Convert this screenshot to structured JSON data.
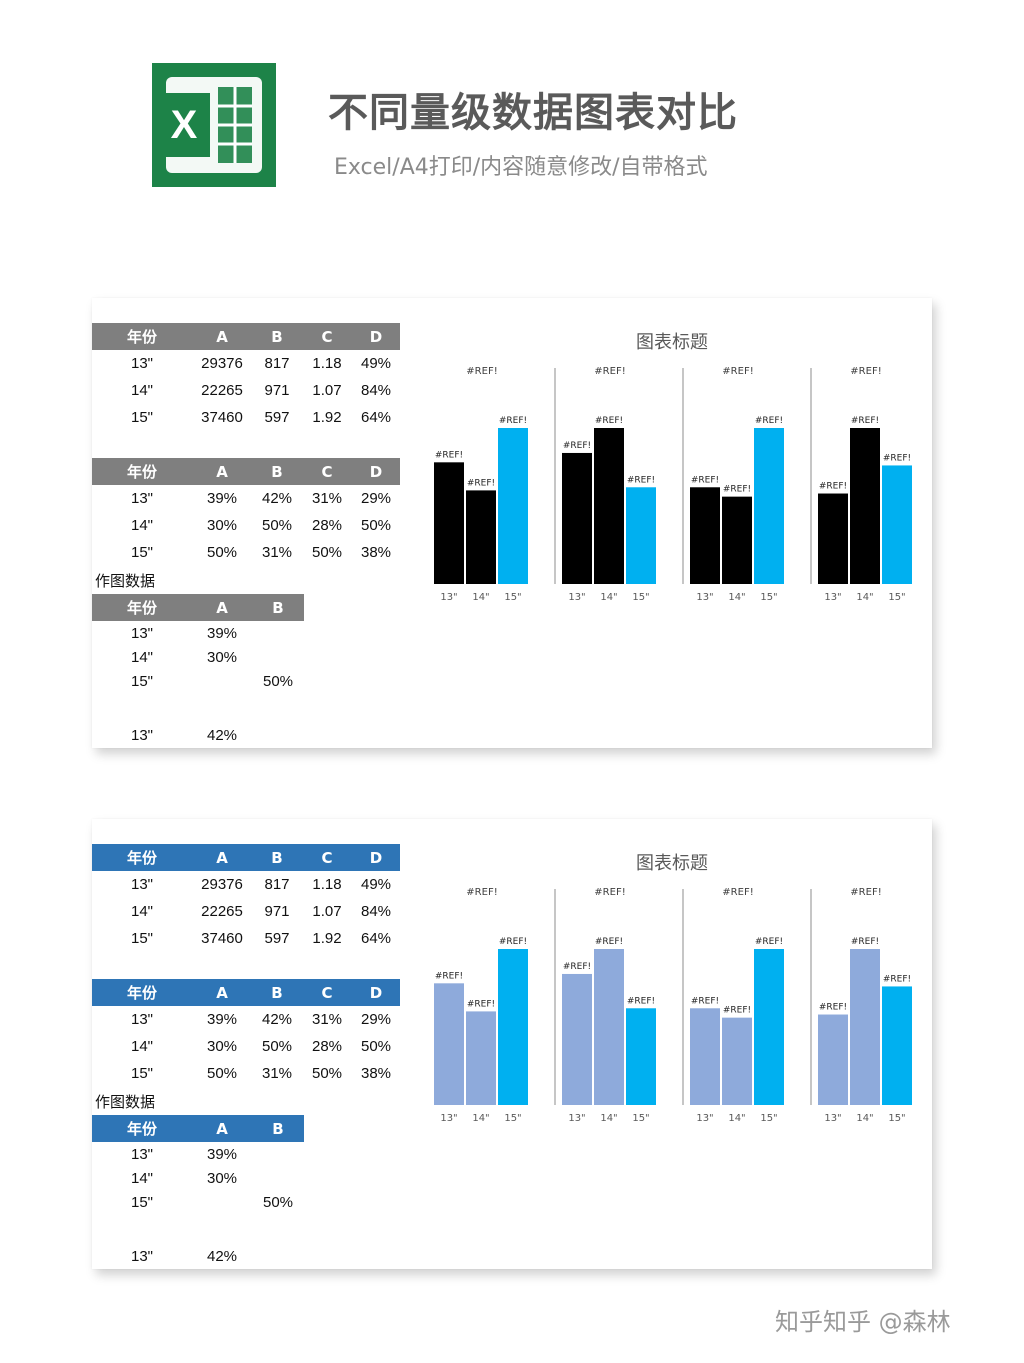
{
  "header": {
    "title": "不同量级数据图表对比",
    "subtitle": "Excel/A4打印/内容随意修改/自带格式",
    "logo_letter": "X",
    "logo_color": "#1d8348"
  },
  "panels": [
    {
      "theme": "gray",
      "colors": {
        "header_bg": "#7f7f7f",
        "bar_primary": "#000000",
        "bar_highlight": "#00b0f0"
      },
      "raw_table": {
        "headers": [
          "年份",
          "A",
          "B",
          "C",
          "D"
        ],
        "rows": [
          [
            "13\"",
            "29376",
            "817",
            "1.18",
            "49%"
          ],
          [
            "14\"",
            "22265",
            "971",
            "1.07",
            "84%"
          ],
          [
            "15\"",
            "37460",
            "597",
            "1.92",
            "64%"
          ]
        ]
      },
      "percent_table": {
        "headers": [
          "年份",
          "A",
          "B",
          "C",
          "D"
        ],
        "rows": [
          [
            "13\"",
            "39%",
            "42%",
            "31%",
            "29%"
          ],
          [
            "14\"",
            "30%",
            "50%",
            "28%",
            "50%"
          ],
          [
            "15\"",
            "50%",
            "31%",
            "50%",
            "38%"
          ]
        ]
      },
      "plot_label": "作图数据",
      "plot_table": {
        "headers": [
          "年份",
          "A",
          "B"
        ],
        "rows": [
          [
            "13\"",
            "39%",
            ""
          ],
          [
            "14\"",
            "30%",
            ""
          ],
          [
            "15\"",
            "",
            "50%"
          ],
          [
            "",
            "",
            ""
          ],
          [
            "13\"",
            "42%",
            ""
          ]
        ]
      }
    },
    {
      "theme": "blue",
      "colors": {
        "header_bg": "#2e75b6",
        "bar_primary": "#8eaadb",
        "bar_highlight": "#00b0f0"
      },
      "raw_table": {
        "headers": [
          "年份",
          "A",
          "B",
          "C",
          "D"
        ],
        "rows": [
          [
            "13\"",
            "29376",
            "817",
            "1.18",
            "49%"
          ],
          [
            "14\"",
            "22265",
            "971",
            "1.07",
            "84%"
          ],
          [
            "15\"",
            "37460",
            "597",
            "1.92",
            "64%"
          ]
        ]
      },
      "percent_table": {
        "headers": [
          "年份",
          "A",
          "B",
          "C",
          "D"
        ],
        "rows": [
          [
            "13\"",
            "39%",
            "42%",
            "31%",
            "29%"
          ],
          [
            "14\"",
            "30%",
            "50%",
            "28%",
            "50%"
          ],
          [
            "15\"",
            "50%",
            "31%",
            "50%",
            "38%"
          ]
        ]
      },
      "plot_label": "作图数据",
      "plot_table": {
        "headers": [
          "年份",
          "A",
          "B"
        ],
        "rows": [
          [
            "13\"",
            "39%",
            ""
          ],
          [
            "14\"",
            "30%",
            ""
          ],
          [
            "15\"",
            "",
            "50%"
          ],
          [
            "",
            "",
            ""
          ],
          [
            "13\"",
            "42%",
            ""
          ]
        ]
      }
    }
  ],
  "chart_data": [
    {
      "type": "bar",
      "title": "图表标题",
      "group_label": "#REF!",
      "data_label": "#REF!",
      "categories": [
        "13\"",
        "14\"",
        "15\""
      ],
      "highlight_category": "15\"",
      "ylim": [
        0,
        0.5
      ],
      "groups": [
        {
          "series": "A",
          "values": [
            0.39,
            0.3,
            0.5
          ]
        },
        {
          "series": "B",
          "values": [
            0.42,
            0.5,
            0.31
          ]
        },
        {
          "series": "C",
          "values": [
            0.31,
            0.28,
            0.5
          ]
        },
        {
          "series": "D",
          "values": [
            0.29,
            0.5,
            0.38
          ]
        }
      ]
    },
    {
      "type": "bar",
      "title": "图表标题",
      "group_label": "#REF!",
      "data_label": "#REF!",
      "categories": [
        "13\"",
        "14\"",
        "15\""
      ],
      "highlight_category": "15\"",
      "ylim": [
        0,
        0.5
      ],
      "groups": [
        {
          "series": "A",
          "values": [
            0.39,
            0.3,
            0.5
          ]
        },
        {
          "series": "B",
          "values": [
            0.42,
            0.5,
            0.31
          ]
        },
        {
          "series": "C",
          "values": [
            0.31,
            0.28,
            0.5
          ]
        },
        {
          "series": "D",
          "values": [
            0.29,
            0.5,
            0.38
          ]
        }
      ]
    }
  ],
  "watermark": "知乎知乎 @森林"
}
